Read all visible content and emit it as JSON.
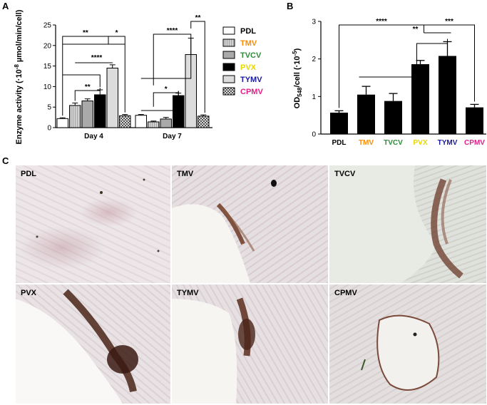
{
  "panels": {
    "a": "A",
    "b": "B",
    "c": "C"
  },
  "chart_a": {
    "type": "bar",
    "ylabel_parts": [
      "Enzyme activity (·10",
      "-8",
      " µmol/min/cell)"
    ],
    "ylim": [
      0,
      25
    ],
    "yticks": [
      "0",
      "5",
      "10",
      "15",
      "20",
      "25"
    ],
    "categories": [
      "Day 4",
      "Day 7"
    ],
    "series": [
      {
        "name": "PDL",
        "values": [
          2.2,
          3.0
        ],
        "errors": [
          0.2,
          0.2
        ]
      },
      {
        "name": "TMV",
        "values": [
          5.4,
          1.4
        ],
        "errors": [
          0.6,
          0.2
        ]
      },
      {
        "name": "TVCV",
        "values": [
          6.5,
          2.1
        ],
        "errors": [
          0.5,
          0.4
        ]
      },
      {
        "name": "PVX",
        "values": [
          8.0,
          7.8
        ],
        "errors": [
          1.2,
          0.6
        ]
      },
      {
        "name": "TYMV",
        "values": [
          14.5,
          17.8
        ],
        "errors": [
          0.8,
          4.0
        ]
      },
      {
        "name": "CPMV",
        "values": [
          2.9,
          2.8
        ],
        "errors": [
          0.3,
          0.3
        ]
      }
    ],
    "significance": [
      "**",
      "*",
      "****",
      "**",
      "*",
      "****",
      "**"
    ]
  },
  "chart_b": {
    "type": "bar",
    "ylabel_parts": [
      "OD",
      "548",
      "/cell (·10",
      "-5",
      ")"
    ],
    "ylim": [
      0,
      3
    ],
    "yticks": [
      "0",
      "1",
      "2",
      "3"
    ],
    "categories": [
      "PDL",
      "TMV",
      "TVCV",
      "PVX",
      "TYMV",
      "CPMV"
    ],
    "category_colors": [
      "#000000",
      "#ff8c00",
      "#2e8b3a",
      "#e8d800",
      "#1a1a9a",
      "#e0208a"
    ],
    "values": [
      0.57,
      1.05,
      0.88,
      1.86,
      2.08,
      0.71
    ],
    "errors": [
      0.05,
      0.22,
      0.2,
      0.1,
      0.38,
      0.08
    ],
    "significance": [
      "****",
      "**",
      "***"
    ]
  },
  "legend_colors": {
    "TMV": "#ff8c00",
    "TVCV": "#2e8b3a",
    "PVX": "#e8d800",
    "TYMV": "#1a1a9a",
    "CPMV": "#e0208a"
  },
  "micrographs": [
    {
      "label": "PDL"
    },
    {
      "label": "TMV"
    },
    {
      "label": "TVCV"
    },
    {
      "label": "PVX"
    },
    {
      "label": "TYMV"
    },
    {
      "label": "CPMV"
    }
  ]
}
